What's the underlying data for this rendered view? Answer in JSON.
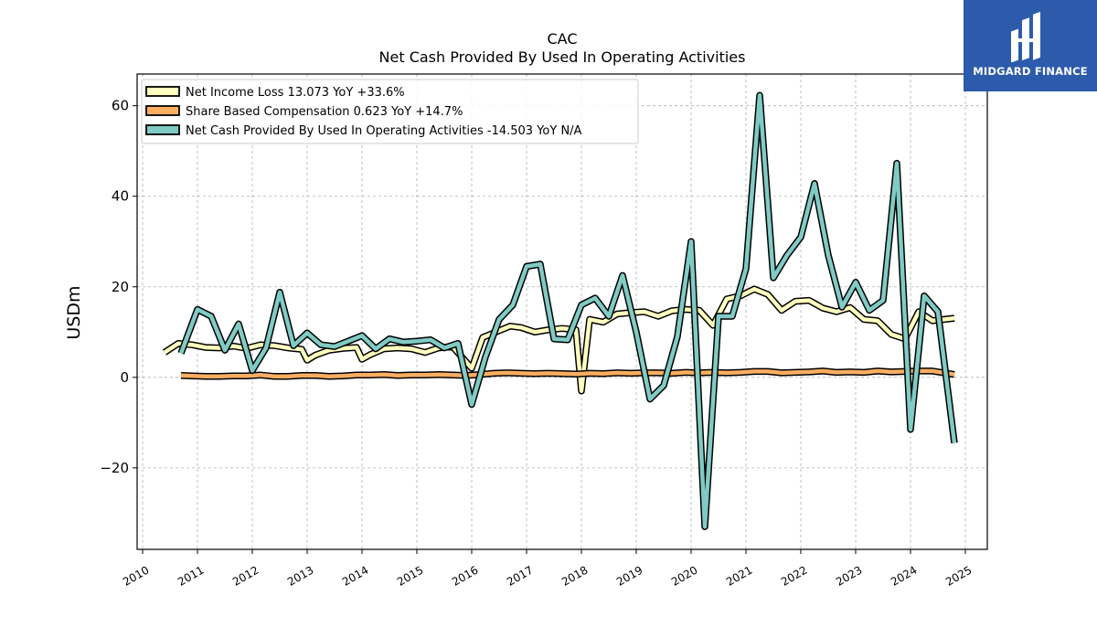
{
  "chart_data": {
    "type": "line",
    "title": "CAC",
    "subtitle": "Net Cash Provided By Used In Operating Activities",
    "xlabel": "",
    "ylabel": "USDm",
    "xlim": [
      2009.9,
      2025.4
    ],
    "ylim": [
      -38,
      67
    ],
    "x_ticks": [
      "2010",
      "2011",
      "2012",
      "2013",
      "2014",
      "2015",
      "2016",
      "2017",
      "2018",
      "2019",
      "2020",
      "2021",
      "2022",
      "2023",
      "2024",
      "2025"
    ],
    "y_ticks": [
      -20,
      0,
      20,
      40,
      60
    ],
    "grid": true,
    "legend_position": "top-left",
    "series": [
      {
        "name": "Net Income Loss",
        "legend_label": "Net Income Loss  13.073 YoY +33.6%",
        "color": "#ffffbf",
        "points": [
          [
            2010.4,
            5.5
          ],
          [
            2010.65,
            7.5
          ],
          [
            2010.9,
            7.2
          ],
          [
            2011.15,
            6.6
          ],
          [
            2011.4,
            6.5
          ],
          [
            2011.65,
            6.9
          ],
          [
            2011.9,
            6.4
          ],
          [
            2012.15,
            7.2
          ],
          [
            2012.4,
            7.0
          ],
          [
            2012.65,
            6.5
          ],
          [
            2012.9,
            6.2
          ],
          [
            2013.0,
            3.8
          ],
          [
            2013.15,
            4.9
          ],
          [
            2013.4,
            6.0
          ],
          [
            2013.65,
            6.4
          ],
          [
            2013.9,
            6.6
          ],
          [
            2014.0,
            4.0
          ],
          [
            2014.15,
            5.0
          ],
          [
            2014.4,
            6.3
          ],
          [
            2014.65,
            6.5
          ],
          [
            2014.9,
            6.3
          ],
          [
            2015.15,
            5.5
          ],
          [
            2015.4,
            6.5
          ],
          [
            2015.65,
            6.8
          ],
          [
            2016.0,
            2.0
          ],
          [
            2016.2,
            8.8
          ],
          [
            2016.4,
            9.8
          ],
          [
            2016.7,
            11.3
          ],
          [
            2016.9,
            11.0
          ],
          [
            2017.15,
            10.0
          ],
          [
            2017.4,
            10.5
          ],
          [
            2017.65,
            10.8
          ],
          [
            2017.9,
            10.5
          ],
          [
            2018.0,
            -3.0
          ],
          [
            2018.15,
            12.8
          ],
          [
            2018.4,
            12.2
          ],
          [
            2018.65,
            14.0
          ],
          [
            2018.9,
            14.3
          ],
          [
            2019.15,
            14.5
          ],
          [
            2019.4,
            13.5
          ],
          [
            2019.65,
            14.7
          ],
          [
            2019.9,
            15.0
          ],
          [
            2020.15,
            14.8
          ],
          [
            2020.4,
            11.5
          ],
          [
            2020.65,
            17.3
          ],
          [
            2020.9,
            18.0
          ],
          [
            2021.15,
            19.5
          ],
          [
            2021.4,
            18.3
          ],
          [
            2021.65,
            14.8
          ],
          [
            2021.9,
            16.8
          ],
          [
            2022.15,
            17.0
          ],
          [
            2022.4,
            15.3
          ],
          [
            2022.65,
            14.5
          ],
          [
            2022.9,
            15.4
          ],
          [
            2023.15,
            12.8
          ],
          [
            2023.4,
            12.5
          ],
          [
            2023.65,
            9.5
          ],
          [
            2023.9,
            8.5
          ],
          [
            2024.15,
            14.5
          ],
          [
            2024.4,
            12.5
          ],
          [
            2024.8,
            13.073
          ]
        ]
      },
      {
        "name": "Share Based Compensation",
        "legend_label": "Share Based Compensation  0.623 YoY +14.7%",
        "color": "#fdae61",
        "points": [
          [
            2010.7,
            0.4
          ],
          [
            2010.9,
            0.3
          ],
          [
            2011.15,
            0.2
          ],
          [
            2011.4,
            0.2
          ],
          [
            2011.65,
            0.3
          ],
          [
            2011.9,
            0.3
          ],
          [
            2012.15,
            0.5
          ],
          [
            2012.4,
            0.2
          ],
          [
            2012.65,
            0.2
          ],
          [
            2012.9,
            0.4
          ],
          [
            2013.15,
            0.4
          ],
          [
            2013.4,
            0.2
          ],
          [
            2013.65,
            0.3
          ],
          [
            2013.9,
            0.5
          ],
          [
            2014.15,
            0.5
          ],
          [
            2014.4,
            0.6
          ],
          [
            2014.65,
            0.4
          ],
          [
            2014.9,
            0.5
          ],
          [
            2015.15,
            0.5
          ],
          [
            2015.4,
            0.6
          ],
          [
            2015.65,
            0.5
          ],
          [
            2015.9,
            0.4
          ],
          [
            2016.15,
            0.6
          ],
          [
            2016.4,
            0.9
          ],
          [
            2016.65,
            1.0
          ],
          [
            2016.9,
            0.9
          ],
          [
            2017.15,
            0.8
          ],
          [
            2017.4,
            0.9
          ],
          [
            2017.65,
            0.8
          ],
          [
            2017.9,
            0.7
          ],
          [
            2018.15,
            0.9
          ],
          [
            2018.4,
            0.8
          ],
          [
            2018.65,
            1.0
          ],
          [
            2018.9,
            0.9
          ],
          [
            2019.15,
            1.0
          ],
          [
            2019.4,
            1.0
          ],
          [
            2019.65,
            0.9
          ],
          [
            2019.9,
            1.1
          ],
          [
            2020.15,
            1.0
          ],
          [
            2020.4,
            1.1
          ],
          [
            2020.65,
            1.0
          ],
          [
            2020.9,
            1.1
          ],
          [
            2021.15,
            1.3
          ],
          [
            2021.4,
            1.3
          ],
          [
            2021.65,
            1.0
          ],
          [
            2021.9,
            1.1
          ],
          [
            2022.15,
            1.2
          ],
          [
            2022.4,
            1.4
          ],
          [
            2022.65,
            1.1
          ],
          [
            2022.9,
            1.2
          ],
          [
            2023.15,
            1.1
          ],
          [
            2023.4,
            1.4
          ],
          [
            2023.65,
            1.2
          ],
          [
            2023.9,
            1.3
          ],
          [
            2024.15,
            1.4
          ],
          [
            2024.4,
            1.4
          ],
          [
            2024.8,
            0.623
          ]
        ]
      },
      {
        "name": "Net Cash Provided By Used In Operating Activities",
        "legend_label": "Net Cash Provided By Used In Operating Activities  -14.503 YoY N/A",
        "color": "#80cbc4",
        "points": [
          [
            2010.7,
            5.3
          ],
          [
            2011.0,
            15.0
          ],
          [
            2011.25,
            13.5
          ],
          [
            2011.5,
            6.0
          ],
          [
            2011.75,
            11.8
          ],
          [
            2012.0,
            1.5
          ],
          [
            2012.25,
            6.5
          ],
          [
            2012.5,
            18.8
          ],
          [
            2012.75,
            7.0
          ],
          [
            2013.0,
            9.8
          ],
          [
            2013.25,
            7.2
          ],
          [
            2013.5,
            6.8
          ],
          [
            2013.75,
            8.0
          ],
          [
            2014.0,
            9.2
          ],
          [
            2014.25,
            6.3
          ],
          [
            2014.5,
            8.5
          ],
          [
            2014.75,
            7.8
          ],
          [
            2015.0,
            8.0
          ],
          [
            2015.25,
            8.3
          ],
          [
            2015.5,
            6.5
          ],
          [
            2015.75,
            7.5
          ],
          [
            2016.0,
            -6.0
          ],
          [
            2016.25,
            4.5
          ],
          [
            2016.5,
            12.8
          ],
          [
            2016.75,
            16.0
          ],
          [
            2017.0,
            24.5
          ],
          [
            2017.25,
            25.0
          ],
          [
            2017.5,
            8.5
          ],
          [
            2017.75,
            8.3
          ],
          [
            2018.0,
            16.0
          ],
          [
            2018.25,
            17.5
          ],
          [
            2018.5,
            13.5
          ],
          [
            2018.75,
            22.5
          ],
          [
            2019.0,
            10.0
          ],
          [
            2019.25,
            -4.8
          ],
          [
            2019.5,
            -1.8
          ],
          [
            2019.75,
            9.0
          ],
          [
            2020.0,
            30.0
          ],
          [
            2020.25,
            -33.0
          ],
          [
            2020.5,
            13.5
          ],
          [
            2020.75,
            13.5
          ],
          [
            2021.0,
            24.0
          ],
          [
            2021.25,
            62.3
          ],
          [
            2021.5,
            22.0
          ],
          [
            2021.75,
            27.0
          ],
          [
            2022.0,
            31.0
          ],
          [
            2022.25,
            42.8
          ],
          [
            2022.5,
            27.0
          ],
          [
            2022.75,
            15.5
          ],
          [
            2023.0,
            21.0
          ],
          [
            2023.25,
            14.8
          ],
          [
            2023.5,
            17.0
          ],
          [
            2023.75,
            47.3
          ],
          [
            2024.0,
            -11.5
          ],
          [
            2024.25,
            18.0
          ],
          [
            2024.5,
            14.5
          ],
          [
            2024.8,
            -14.503
          ]
        ]
      }
    ]
  },
  "logo": {
    "text": "MIDGARD FINANCE",
    "background": "#2d5bab"
  }
}
